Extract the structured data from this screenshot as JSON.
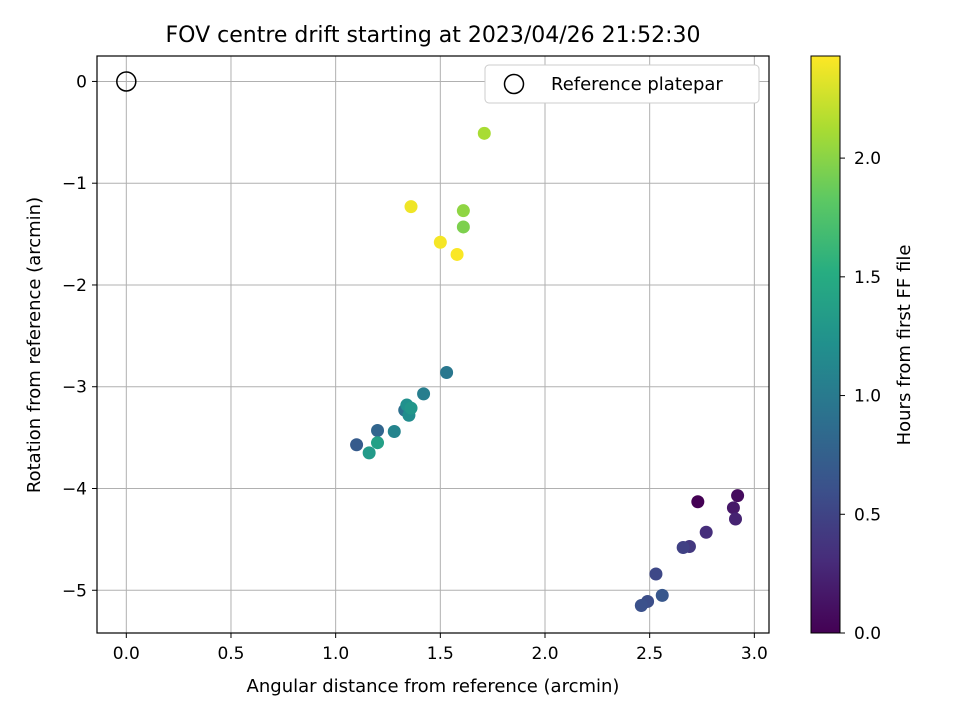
{
  "chart_data": {
    "type": "scatter",
    "title": "FOV centre drift starting at 2023/04/26 21:52:30",
    "xlabel": "Angular distance from reference (arcmin)",
    "ylabel": "Rotation from reference (arcmin)",
    "xlim": [
      -0.14,
      3.07
    ],
    "ylim": [
      -5.42,
      0.25
    ],
    "xticks": [
      "0.0",
      "0.5",
      "1.0",
      "1.5",
      "2.0",
      "2.5",
      "3.0"
    ],
    "yticks": [
      "0",
      "−1",
      "−2",
      "−3",
      "−4",
      "−5"
    ],
    "grid": true,
    "colormap": "viridis",
    "colorbar": {
      "label": "Hours from first FF file",
      "range": [
        0.0,
        2.43
      ],
      "ticks": [
        "0.0",
        "0.5",
        "1.0",
        "1.5",
        "2.0"
      ]
    },
    "reference": {
      "x": 0.0,
      "y": 0.0,
      "label": "Reference platepar"
    },
    "legend": {
      "position": "top-right",
      "entries": [
        "Reference platepar"
      ]
    },
    "points": [
      {
        "x": 2.73,
        "y": -4.13,
        "t": 0.0
      },
      {
        "x": 2.92,
        "y": -4.07,
        "t": 0.08
      },
      {
        "x": 2.9,
        "y": -4.19,
        "t": 0.16
      },
      {
        "x": 2.91,
        "y": -4.3,
        "t": 0.24
      },
      {
        "x": 2.77,
        "y": -4.43,
        "t": 0.32
      },
      {
        "x": 2.69,
        "y": -4.57,
        "t": 0.4
      },
      {
        "x": 2.66,
        "y": -4.58,
        "t": 0.48
      },
      {
        "x": 2.53,
        "y": -4.84,
        "t": 0.53
      },
      {
        "x": 2.49,
        "y": -5.11,
        "t": 0.58
      },
      {
        "x": 2.46,
        "y": -5.15,
        "t": 0.61
      },
      {
        "x": 2.56,
        "y": -5.05,
        "t": 0.66
      },
      {
        "x": 1.1,
        "y": -3.57,
        "t": 0.7
      },
      {
        "x": 1.2,
        "y": -3.43,
        "t": 0.8
      },
      {
        "x": 1.33,
        "y": -3.23,
        "t": 0.9
      },
      {
        "x": 1.53,
        "y": -2.86,
        "t": 0.97
      },
      {
        "x": 1.42,
        "y": -3.07,
        "t": 1.04
      },
      {
        "x": 1.28,
        "y": -3.44,
        "t": 1.1
      },
      {
        "x": 1.35,
        "y": -3.28,
        "t": 1.18
      },
      {
        "x": 1.34,
        "y": -3.18,
        "t": 1.22
      },
      {
        "x": 1.36,
        "y": -3.21,
        "t": 1.28
      },
      {
        "x": 1.16,
        "y": -3.65,
        "t": 1.32
      },
      {
        "x": 1.2,
        "y": -3.55,
        "t": 1.38
      },
      {
        "x": 1.61,
        "y": -1.43,
        "t": 1.95
      },
      {
        "x": 1.61,
        "y": -1.27,
        "t": 2.02
      },
      {
        "x": 1.71,
        "y": -0.51,
        "t": 2.12
      },
      {
        "x": 1.36,
        "y": -1.23,
        "t": 2.38
      },
      {
        "x": 1.5,
        "y": -1.58,
        "t": 2.4
      },
      {
        "x": 1.58,
        "y": -1.7,
        "t": 2.42
      }
    ]
  }
}
